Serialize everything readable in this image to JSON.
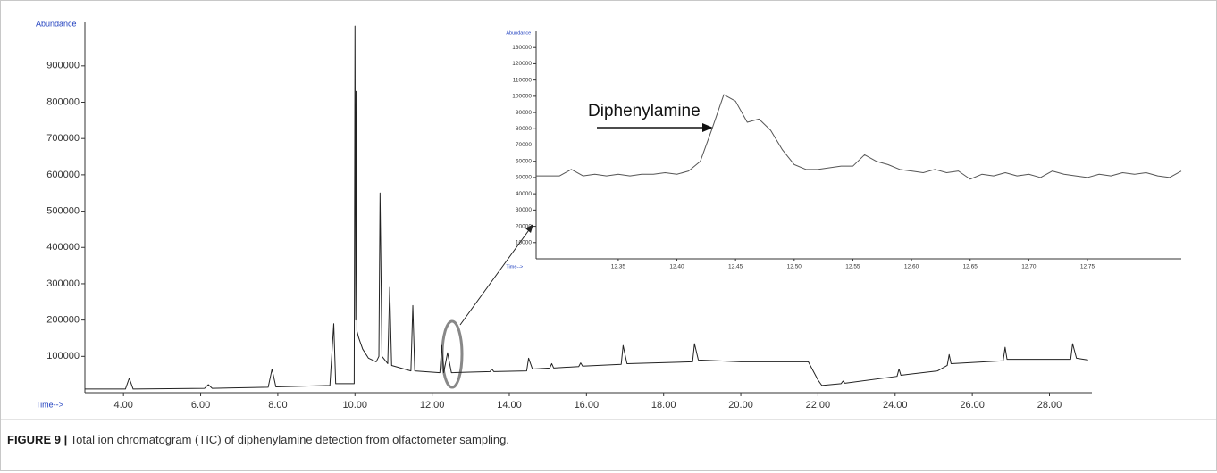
{
  "chart_data": [
    {
      "type": "line",
      "y_label": "Abundance",
      "x_label": "Time-->",
      "color": "#222222",
      "x": [
        3.0,
        4.05,
        4.15,
        4.25,
        6.1,
        6.2,
        6.3,
        7.75,
        7.85,
        7.95,
        9.35,
        9.45,
        9.5,
        9.98,
        10.0,
        10.02,
        10.03,
        10.05,
        10.1,
        10.2,
        10.35,
        10.55,
        10.62,
        10.65,
        10.7,
        10.85,
        10.9,
        10.95,
        11.45,
        11.5,
        11.55,
        12.2,
        12.25,
        12.3,
        12.4,
        12.5,
        13.5,
        13.55,
        13.6,
        14.45,
        14.5,
        14.6,
        15.05,
        15.1,
        15.15,
        15.8,
        15.85,
        15.9,
        16.9,
        16.95,
        17.05,
        18.75,
        18.8,
        18.9,
        20.0,
        21.75,
        22.0,
        22.1,
        22.6,
        22.65,
        22.7,
        24.05,
        24.1,
        24.15,
        25.1,
        25.35,
        25.4,
        25.45,
        26.8,
        26.85,
        26.9,
        28.55,
        28.6,
        28.7,
        29.0
      ],
      "values": [
        10000,
        10000,
        40000,
        10000,
        12000,
        22000,
        12000,
        15000,
        65000,
        16000,
        20000,
        190000,
        25000,
        25000,
        1010000,
        200000,
        830000,
        170000,
        150000,
        120000,
        95000,
        85000,
        100000,
        550000,
        100000,
        80000,
        290000,
        75000,
        60000,
        240000,
        60000,
        55000,
        130000,
        55000,
        110000,
        55000,
        58000,
        65000,
        58000,
        60000,
        95000,
        65000,
        68000,
        80000,
        68000,
        72000,
        82000,
        73000,
        78000,
        130000,
        80000,
        85000,
        135000,
        90000,
        85000,
        85000,
        35000,
        20000,
        25000,
        32000,
        26000,
        45000,
        65000,
        48000,
        60000,
        75000,
        105000,
        80000,
        88000,
        125000,
        92000,
        92000,
        135000,
        95000,
        90000
      ],
      "xlim": [
        3.0,
        29.1
      ],
      "ylim": [
        0,
        1020000
      ],
      "xticks": [
        {
          "value": 4,
          "label": "4.00"
        },
        {
          "value": 6,
          "label": "6.00"
        },
        {
          "value": 8,
          "label": "8.00"
        },
        {
          "value": 10,
          "label": "10.00"
        },
        {
          "value": 12,
          "label": "12.00"
        },
        {
          "value": 14,
          "label": "14.00"
        },
        {
          "value": 16,
          "label": "16.00"
        },
        {
          "value": 18,
          "label": "18.00"
        },
        {
          "value": 20,
          "label": "20.00"
        },
        {
          "value": 22,
          "label": "22.00"
        },
        {
          "value": 24,
          "label": "24.00"
        },
        {
          "value": 26,
          "label": "26.00"
        },
        {
          "value": 28,
          "label": "28.00"
        }
      ],
      "yticks": [
        100000,
        200000,
        300000,
        400000,
        500000,
        600000,
        700000,
        800000,
        900000
      ]
    },
    {
      "type": "line",
      "y_label": "Abundance",
      "x_label": "Time-->",
      "color": "#555555",
      "annotation": "Diphenylamine",
      "x": [
        12.28,
        12.29,
        12.3,
        12.31,
        12.32,
        12.33,
        12.34,
        12.35,
        12.36,
        12.37,
        12.38,
        12.39,
        12.4,
        12.41,
        12.42,
        12.43,
        12.44,
        12.45,
        12.46,
        12.47,
        12.48,
        12.49,
        12.5,
        12.51,
        12.52,
        12.53,
        12.54,
        12.55,
        12.56,
        12.57,
        12.58,
        12.59,
        12.6,
        12.61,
        12.62,
        12.63,
        12.64,
        12.65,
        12.66,
        12.67,
        12.68,
        12.69,
        12.7,
        12.71,
        12.72,
        12.73,
        12.74,
        12.75,
        12.76,
        12.77,
        12.78,
        12.79,
        12.8,
        12.81,
        12.82,
        12.83
      ],
      "values": [
        51000,
        51000,
        51000,
        55000,
        51000,
        52000,
        51000,
        52000,
        51000,
        52000,
        52000,
        53000,
        52000,
        54000,
        60000,
        80000,
        101000,
        97000,
        84000,
        86000,
        79000,
        67000,
        58000,
        55000,
        55000,
        56000,
        57000,
        57000,
        64000,
        60000,
        58000,
        55000,
        54000,
        53000,
        55000,
        53000,
        54000,
        49000,
        52000,
        51000,
        53000,
        51000,
        52000,
        50000,
        54000,
        52000,
        51000,
        50000,
        52000,
        51000,
        53000,
        52000,
        53000,
        51000,
        50000,
        54000
      ],
      "xlim": [
        12.28,
        12.83
      ],
      "ylim": [
        0,
        140000
      ],
      "xticks": [
        12.35,
        {
          "value": 12.4,
          "label": "12.40"
        },
        12.45,
        {
          "value": 12.5,
          "label": "12.50"
        },
        12.55,
        {
          "value": 12.6,
          "label": "12.60"
        },
        12.65,
        {
          "value": 12.7,
          "label": "12.70"
        },
        12.75
      ],
      "yticks": [
        10000,
        20000,
        30000,
        40000,
        50000,
        60000,
        70000,
        80000,
        90000,
        100000,
        110000,
        120000,
        130000
      ]
    }
  ],
  "caption_label": "FIGURE 9 |",
  "caption": "Total ion chromatogram (TIC) of diphenylamine detection from olfactometer sampling."
}
